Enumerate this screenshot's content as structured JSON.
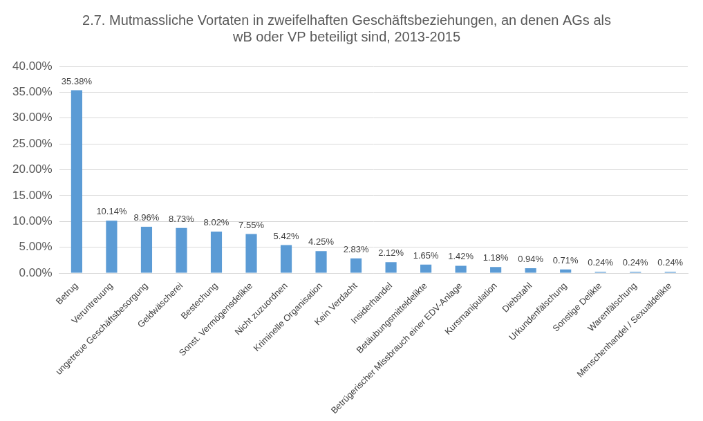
{
  "chart_data": {
    "type": "bar",
    "title": [
      "2.7. Mutmassliche Vortaten in zweifelhaften Geschäftsbeziehungen, an denen AGs als",
      "wB oder VP beteiligt sind, 2013-2015"
    ],
    "categories": [
      "Betrug",
      "Veruntreuung",
      "ungetreue Geschäftsbesorgung",
      "Geldwäscherei",
      "Bestechung",
      "Sonst. Vermögensdelikte",
      "Nicht zuzuordnen",
      "Kriminelle Organisation",
      "Kein Verdacht",
      "Insiderhandel",
      "Betäubungsmitteldelikte",
      "Betrügerischer Missbrauch einer EDV-Anlage",
      "Kursmanipulation",
      "Diebstahl",
      "Urkundenfälschung",
      "Sonstige Delikte",
      "Warenfälschung",
      "Menschenhandel / Sexualdelikte"
    ],
    "values": [
      35.38,
      10.14,
      8.96,
      8.73,
      8.02,
      7.55,
      5.42,
      4.25,
      2.83,
      2.12,
      1.65,
      1.42,
      1.18,
      0.94,
      0.71,
      0.24,
      0.24,
      0.24
    ],
    "value_labels": [
      "35.38%",
      "10.14%",
      "8.96%",
      "8.73%",
      "8.02%",
      "7.55%",
      "5.42%",
      "4.25%",
      "2.83%",
      "2.12%",
      "1.65%",
      "1.42%",
      "1.18%",
      "0.94%",
      "0.71%",
      "0.24%",
      "0.24%",
      "0.24%"
    ],
    "color": "#5b9bd5",
    "ylim": [
      0,
      40
    ],
    "yticks": [
      {
        "value": 0,
        "label": "0.00%"
      },
      {
        "value": 5,
        "label": "5.00%"
      },
      {
        "value": 10,
        "label": "10.00%"
      },
      {
        "value": 15,
        "label": "15.00%"
      },
      {
        "value": 20,
        "label": "20.00%"
      },
      {
        "value": 25,
        "label": "25.00%"
      },
      {
        "value": 30,
        "label": "30.00%"
      },
      {
        "value": 35,
        "label": "35.00%"
      },
      {
        "value": 40,
        "label": "40.00%"
      }
    ],
    "grid": true,
    "data_labels": true
  }
}
